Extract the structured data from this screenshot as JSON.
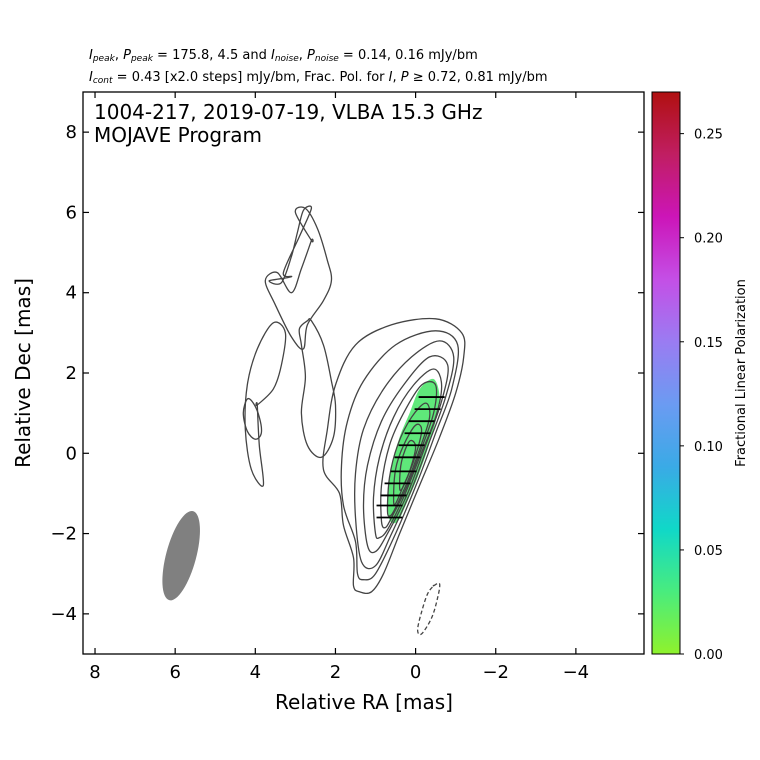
{
  "header": {
    "i_peak": "I",
    "i_peak_sub": "peak",
    "p_peak": "P",
    "p_peak_sub": "peak",
    "peaks_text": " = 175.8, 4.5 and ",
    "i_noise": "I",
    "i_noise_sub": "noise",
    "p_noise": "P",
    "p_noise_sub": "noise",
    "noise_text": " = 0.14, 0.16 mJy/bm",
    "i_cont": "I",
    "i_cont_sub": "cont",
    "cont_text": " = 0.43 [x2.0 steps] mJy/bm, Frac. Pol. for ",
    "i_sym": "I",
    "p_sym": "P",
    "ge_text": " ≥ 0.72, 0.81 mJy/bm"
  },
  "chart_data": {
    "type": "contour",
    "title_line1": "1004-217, 2019-07-19, VLBA 15.3 GHz",
    "title_line2": "MOJAVE Program",
    "xlabel": "Relative RA [mas]",
    "ylabel": "Relative Dec [mas]",
    "xlim": [
      8.3,
      -5.7
    ],
    "ylim": [
      -5.0,
      9.0
    ],
    "xticks": [
      8,
      6,
      4,
      2,
      0,
      -2,
      -4
    ],
    "xtick_labels": [
      "8",
      "6",
      "4",
      "2",
      "0",
      "−2",
      "−4"
    ],
    "yticks": [
      8,
      6,
      4,
      2,
      0,
      -2,
      -4
    ],
    "ytick_labels": [
      "8",
      "6",
      "4",
      "2",
      "0",
      "−2",
      "−4"
    ],
    "beam": {
      "x": 5.85,
      "y": -2.55,
      "major_mas": 2.3,
      "minor_mas": 0.75,
      "pa_deg": -15,
      "color": "#808080"
    },
    "contours": [
      {
        "level": 1,
        "points": [
          [
            1.55,
            -3.3
          ],
          [
            1.55,
            -2.6
          ],
          [
            1.8,
            -1.8
          ],
          [
            1.9,
            -1.0
          ],
          [
            2.3,
            -0.4
          ],
          [
            2.2,
            0.6
          ],
          [
            2.0,
            1.7
          ],
          [
            1.5,
            2.7
          ],
          [
            0.6,
            3.2
          ],
          [
            -0.5,
            3.35
          ],
          [
            -1.15,
            3.0
          ],
          [
            -1.2,
            2.4
          ],
          [
            -1.0,
            1.5
          ],
          [
            -0.6,
            0.4
          ],
          [
            -0.1,
            -0.8
          ],
          [
            0.4,
            -2.0
          ],
          [
            0.8,
            -3.0
          ],
          [
            1.1,
            -3.45
          ],
          [
            1.4,
            -3.45
          ]
        ]
      },
      {
        "level": 2,
        "points": [
          [
            1.45,
            -3.0
          ],
          [
            1.5,
            -2.2
          ],
          [
            1.8,
            -1.3
          ],
          [
            1.85,
            -0.3
          ],
          [
            1.7,
            0.8
          ],
          [
            1.3,
            1.8
          ],
          [
            0.5,
            2.7
          ],
          [
            -0.5,
            3.05
          ],
          [
            -1.05,
            2.7
          ],
          [
            -0.9,
            1.6
          ],
          [
            -0.5,
            0.5
          ],
          [
            -0.05,
            -0.7
          ],
          [
            0.5,
            -2.0
          ],
          [
            1.0,
            -3.0
          ],
          [
            1.3,
            -3.15
          ]
        ]
      },
      {
        "level": 3,
        "points": [
          [
            1.35,
            -2.7
          ],
          [
            1.5,
            -1.6
          ],
          [
            1.5,
            -0.5
          ],
          [
            1.3,
            0.6
          ],
          [
            0.8,
            1.6
          ],
          [
            0.1,
            2.4
          ],
          [
            -0.6,
            2.8
          ],
          [
            -0.95,
            2.4
          ],
          [
            -0.75,
            1.4
          ],
          [
            -0.35,
            0.3
          ],
          [
            0.1,
            -0.9
          ],
          [
            0.6,
            -2.0
          ],
          [
            1.0,
            -2.8
          ]
        ]
      },
      {
        "level": 4,
        "points": [
          [
            1.2,
            -2.3
          ],
          [
            1.3,
            -1.3
          ],
          [
            1.2,
            -0.3
          ],
          [
            0.85,
            0.8
          ],
          [
            0.3,
            1.7
          ],
          [
            -0.35,
            2.4
          ],
          [
            -0.8,
            2.2
          ],
          [
            -0.65,
            1.3
          ],
          [
            -0.25,
            0.2
          ],
          [
            0.2,
            -1.0
          ],
          [
            0.7,
            -2.0
          ],
          [
            1.0,
            -2.45
          ]
        ]
      },
      {
        "level": 5,
        "points": [
          [
            1.0,
            -2.0
          ],
          [
            1.05,
            -1.1
          ],
          [
            0.9,
            -0.1
          ],
          [
            0.55,
            0.9
          ],
          [
            0.05,
            1.7
          ],
          [
            -0.45,
            2.1
          ],
          [
            -0.65,
            1.7
          ],
          [
            -0.5,
            0.9
          ],
          [
            -0.1,
            -0.1
          ],
          [
            0.3,
            -1.1
          ],
          [
            0.7,
            -1.9
          ],
          [
            0.9,
            -2.1
          ]
        ]
      },
      {
        "level": 6,
        "points": [
          [
            0.85,
            -1.7
          ],
          [
            0.85,
            -0.8
          ],
          [
            0.65,
            0.2
          ],
          [
            0.3,
            1.0
          ],
          [
            -0.15,
            1.7
          ],
          [
            -0.5,
            1.7
          ],
          [
            -0.45,
            1.0
          ],
          [
            -0.1,
            0.0
          ],
          [
            0.25,
            -0.9
          ],
          [
            0.6,
            -1.6
          ],
          [
            0.75,
            -1.85
          ]
        ]
      },
      {
        "level": 7,
        "points": [
          [
            0.7,
            -1.45
          ],
          [
            0.65,
            -0.6
          ],
          [
            0.45,
            0.2
          ],
          [
            0.1,
            0.9
          ],
          [
            -0.25,
            1.25
          ],
          [
            -0.35,
            0.9
          ],
          [
            -0.1,
            0.1
          ],
          [
            0.2,
            -0.7
          ],
          [
            0.5,
            -1.35
          ],
          [
            0.62,
            -1.55
          ]
        ]
      },
      {
        "level": 8,
        "points": [
          [
            0.55,
            -1.15
          ],
          [
            0.5,
            -0.4
          ],
          [
            0.3,
            0.2
          ],
          [
            0.0,
            0.7
          ],
          [
            -0.15,
            0.55
          ],
          [
            0.05,
            -0.2
          ],
          [
            0.3,
            -0.8
          ],
          [
            0.5,
            -1.25
          ]
        ]
      },
      {
        "level": 9,
        "points": [
          [
            0.4,
            -0.8
          ],
          [
            0.35,
            -0.2
          ],
          [
            0.15,
            0.3
          ],
          [
            0.0,
            0.15
          ],
          [
            0.15,
            -0.45
          ],
          [
            0.35,
            -0.9
          ]
        ]
      },
      {
        "level": 1,
        "points": [
          [
            3.1,
            4.4
          ],
          [
            3.3,
            4.5
          ],
          [
            2.9,
            5.4
          ],
          [
            2.6,
            6.1
          ],
          [
            2.8,
            6.05
          ],
          [
            2.95,
            5.5
          ],
          [
            3.1,
            4.9
          ],
          [
            3.35,
            4.25
          ],
          [
            3.65,
            4.3
          ]
        ]
      },
      {
        "level": 1,
        "points": [
          [
            2.6,
            5.3
          ],
          [
            3.0,
            6.0
          ],
          [
            2.75,
            6.1
          ],
          [
            2.45,
            5.6
          ],
          [
            2.2,
            4.8
          ],
          [
            2.1,
            4.3
          ],
          [
            2.3,
            3.8
          ],
          [
            2.7,
            3.2
          ],
          [
            2.8,
            2.6
          ],
          [
            3.1,
            2.9
          ],
          [
            3.5,
            3.7
          ],
          [
            3.75,
            4.3
          ],
          [
            3.45,
            4.5
          ],
          [
            3.1,
            4.0
          ],
          [
            2.85,
            4.6
          ],
          [
            2.6,
            5.3
          ]
        ]
      },
      {
        "level": 1,
        "points": [
          [
            3.95,
            1.2
          ],
          [
            3.9,
            0.2
          ],
          [
            3.8,
            -0.8
          ],
          [
            4.1,
            -0.4
          ],
          [
            4.25,
            0.6
          ],
          [
            4.2,
            1.7
          ],
          [
            3.95,
            2.6
          ],
          [
            3.55,
            3.25
          ],
          [
            3.25,
            3.0
          ],
          [
            3.35,
            2.2
          ],
          [
            3.55,
            1.6
          ],
          [
            3.95,
            1.2
          ]
        ]
      },
      {
        "level": 1,
        "points": [
          [
            4.05,
            1.25
          ],
          [
            3.9,
            0.9
          ],
          [
            3.85,
            0.5
          ],
          [
            4.0,
            0.35
          ],
          [
            4.2,
            0.55
          ],
          [
            4.3,
            1.0
          ],
          [
            4.2,
            1.35
          ]
        ]
      },
      {
        "level": 1,
        "points": [
          [
            2.6,
            3.3
          ],
          [
            2.3,
            2.7
          ],
          [
            2.1,
            1.8
          ],
          [
            2.0,
            1.2
          ],
          [
            2.05,
            0.4
          ],
          [
            2.35,
            -0.1
          ],
          [
            2.7,
            0.2
          ],
          [
            2.85,
            1.0
          ],
          [
            2.75,
            1.9
          ],
          [
            2.85,
            2.7
          ],
          [
            2.9,
            3.1
          ],
          [
            2.7,
            3.3
          ]
        ]
      },
      {
        "level": -1,
        "dashed": true,
        "points": [
          [
            -0.45,
            -3.3
          ],
          [
            -0.6,
            -3.25
          ],
          [
            -0.55,
            -3.6
          ],
          [
            -0.4,
            -4.1
          ],
          [
            -0.15,
            -4.5
          ],
          [
            -0.05,
            -4.4
          ],
          [
            -0.15,
            -3.95
          ],
          [
            -0.3,
            -3.5
          ],
          [
            -0.45,
            -3.3
          ]
        ]
      }
    ],
    "fracpol_region": {
      "points": [
        [
          0.65,
          -1.65
        ],
        [
          0.7,
          -1.0
        ],
        [
          0.6,
          -0.3
        ],
        [
          0.4,
          0.4
        ],
        [
          0.15,
          1.0
        ],
        [
          -0.1,
          1.6
        ],
        [
          -0.45,
          1.85
        ],
        [
          -0.6,
          1.4
        ],
        [
          -0.5,
          0.8
        ],
        [
          -0.3,
          0.1
        ],
        [
          -0.05,
          -0.6
        ],
        [
          0.25,
          -1.3
        ],
        [
          0.45,
          -1.7
        ]
      ],
      "color": "#5fe87a",
      "frac": 0.025
    },
    "evpa_vectors": [
      {
        "x": 0.65,
        "y": -1.6
      },
      {
        "x": 0.65,
        "y": -1.3
      },
      {
        "x": 0.55,
        "y": -1.05
      },
      {
        "x": 0.45,
        "y": -0.75
      },
      {
        "x": 0.3,
        "y": -0.45
      },
      {
        "x": 0.2,
        "y": -0.1
      },
      {
        "x": 0.1,
        "y": 0.2
      },
      {
        "x": -0.05,
        "y": 0.5
      },
      {
        "x": -0.15,
        "y": 0.8
      },
      {
        "x": -0.3,
        "y": 1.1
      },
      {
        "x": -0.4,
        "y": 1.4
      }
    ],
    "colorbar": {
      "label": "Fractional Linear Polarization",
      "min": 0.0,
      "max": 0.27,
      "ticks": [
        0.0,
        0.05,
        0.1,
        0.15,
        0.2,
        0.25
      ],
      "tick_labels": [
        "0.00",
        "0.05",
        "0.10",
        "0.15",
        "0.20",
        "0.25"
      ],
      "stops": [
        {
          "v": 0.0,
          "color": "#8ff22c"
        },
        {
          "v": 0.03,
          "color": "#49ec7e"
        },
        {
          "v": 0.06,
          "color": "#10d8c8"
        },
        {
          "v": 0.09,
          "color": "#3aaae6"
        },
        {
          "v": 0.12,
          "color": "#6b9bf2"
        },
        {
          "v": 0.15,
          "color": "#9a7cf2"
        },
        {
          "v": 0.18,
          "color": "#c44fe6"
        },
        {
          "v": 0.21,
          "color": "#cc15b8"
        },
        {
          "v": 0.24,
          "color": "#c01e62"
        },
        {
          "v": 0.27,
          "color": "#b01010"
        }
      ]
    },
    "contour_color": "#444444"
  }
}
